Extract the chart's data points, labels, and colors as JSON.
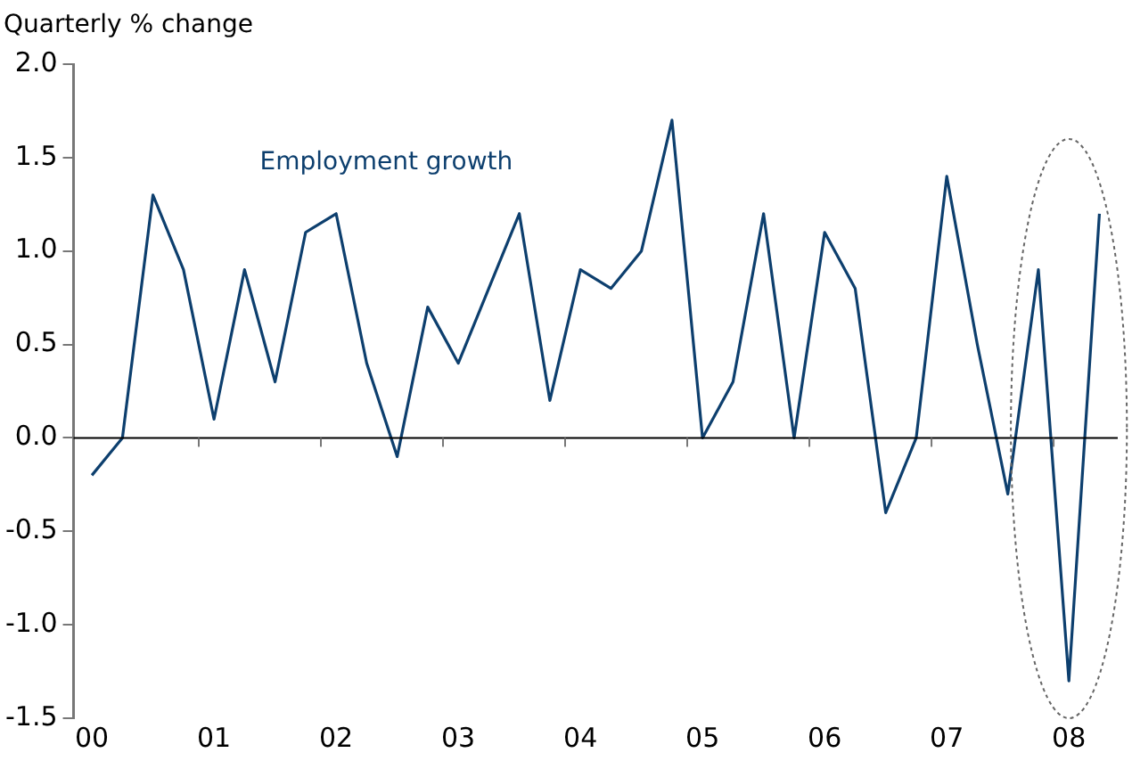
{
  "chart_data": {
    "type": "line",
    "ylabel": "Quarterly % change",
    "x": [
      0,
      0.25,
      0.5,
      0.75,
      1,
      1.25,
      1.5,
      1.75,
      2,
      2.25,
      2.5,
      2.75,
      3,
      3.25,
      3.5,
      3.75,
      4,
      4.25,
      4.5,
      4.75,
      5,
      5.25,
      5.5,
      5.75,
      6,
      6.25,
      6.5,
      6.75,
      7,
      7.25,
      7.5,
      7.75,
      8,
      8.25
    ],
    "series": [
      {
        "name": "Employment growth",
        "color": "#0d3f6e",
        "values": [
          -0.2,
          0.0,
          1.3,
          0.9,
          0.1,
          0.9,
          0.3,
          1.1,
          1.2,
          0.4,
          -0.1,
          0.7,
          0.4,
          0.8,
          1.2,
          0.2,
          0.9,
          0.8,
          1.0,
          1.7,
          0.0,
          0.3,
          1.2,
          0.0,
          1.1,
          0.8,
          -0.4,
          0.0,
          1.4,
          0.5,
          -0.3,
          0.9,
          -1.3,
          1.2
        ]
      }
    ],
    "xlim": [
      -0.15,
      8.4
    ],
    "xticks": [
      {
        "value": 0,
        "label": "00"
      },
      {
        "value": 0.875,
        "label": null
      },
      {
        "value": 1,
        "label": "01"
      },
      {
        "value": 1.875,
        "label": null
      },
      {
        "value": 2,
        "label": "02"
      },
      {
        "value": 2.875,
        "label": null
      },
      {
        "value": 3,
        "label": "03"
      },
      {
        "value": 3.875,
        "label": null
      },
      {
        "value": 4,
        "label": "04"
      },
      {
        "value": 4.875,
        "label": null
      },
      {
        "value": 5,
        "label": "05"
      },
      {
        "value": 5.875,
        "label": null
      },
      {
        "value": 6,
        "label": "06"
      },
      {
        "value": 6.875,
        "label": null
      },
      {
        "value": 7,
        "label": "07"
      },
      {
        "value": 7.875,
        "label": null
      },
      {
        "value": 8,
        "label": "08"
      }
    ],
    "ylim": [
      -1.5,
      2.0
    ],
    "yticks": [
      {
        "value": -1.5,
        "label": "-1.5"
      },
      {
        "value": -1.0,
        "label": "-1.0"
      },
      {
        "value": -0.5,
        "label": "-0.5"
      },
      {
        "value": 0,
        "label": "0.0"
      },
      {
        "value": 0.5,
        "label": "0.5"
      },
      {
        "value": 1.0,
        "label": "1.0"
      },
      {
        "value": 1.5,
        "label": "1.5"
      },
      {
        "value": 2.0,
        "label": "2.0"
      }
    ],
    "ref_lines": [
      {
        "axis": "y",
        "value": 0,
        "color": "#000000"
      }
    ],
    "grid": false,
    "legend": false,
    "marker": "none",
    "line_style": "solid"
  }
}
